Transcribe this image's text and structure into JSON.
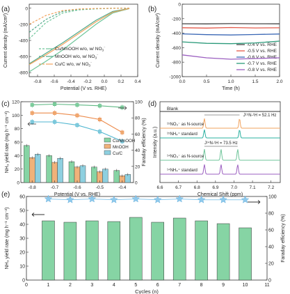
{
  "panels": [
    "(a)",
    "(b)",
    "(c)",
    "(d)",
    "(e)"
  ],
  "chart_data": [
    {
      "panel": "(a)",
      "type": "line",
      "xlabel": "Potential (V vs. RHE)",
      "ylabel": "Current density (mA/cm²)",
      "xlim": [
        -0.9,
        0.4
      ],
      "ylim": [
        -850,
        50
      ],
      "xticks": [
        "-0.8",
        "-0.6",
        "-0.4",
        "-0.2",
        "0.0",
        "0.2",
        "0.4"
      ],
      "yticks": [
        "0",
        "-200",
        "-400",
        "-600",
        "-800"
      ],
      "legend": "bottom-left",
      "legend_labels": [
        [
          "Cu/MnOOH",
          "w/o, w/ NO",
          "3",
          "⁻"
        ],
        [
          "MnOOH",
          "w/o, w/ NO",
          "3",
          "⁻"
        ],
        [
          "Cu/C",
          "w/o, w/ NO",
          "3",
          "⁻"
        ]
      ],
      "colors": {
        "Cu/MnOOH": "#6fc59a",
        "MnOOH": "#4fa889",
        "Cu/C": "#f2a35e"
      },
      "series": [
        {
          "label": "Cu/MnOOH w/o NO3-",
          "dash": "dashed",
          "x": [
            0.3,
            0.1,
            -0.1,
            -0.3,
            -0.5,
            -0.7,
            -0.9
          ],
          "y": [
            0,
            -2,
            -8,
            -20,
            -60,
            -180,
            -380
          ]
        },
        {
          "label": "Cu/MnOOH w/ NO3-",
          "dash": "solid",
          "x": [
            0.3,
            0.1,
            -0.1,
            -0.3,
            -0.5,
            -0.7,
            -0.9
          ],
          "y": [
            -5,
            -60,
            -200,
            -360,
            -520,
            -660,
            -790
          ]
        },
        {
          "label": "MnOOH w/o NO3-",
          "dash": "dashed",
          "x": [
            0.3,
            0.1,
            -0.1,
            -0.3,
            -0.5,
            -0.7,
            -0.9
          ],
          "y": [
            0,
            -1,
            -5,
            -12,
            -40,
            -140,
            -300
          ]
        },
        {
          "label": "MnOOH w/ NO3-",
          "dash": "solid",
          "x": [
            0.3,
            0.1,
            -0.1,
            -0.3,
            -0.5,
            -0.7,
            -0.9
          ],
          "y": [
            -3,
            -40,
            -150,
            -290,
            -430,
            -560,
            -690
          ]
        },
        {
          "label": "Cu/C w/o NO3-",
          "dash": "dashed",
          "x": [
            0.3,
            0.1,
            -0.1,
            -0.3,
            -0.5,
            -0.7,
            -0.9
          ],
          "y": [
            0,
            -1,
            -4,
            -10,
            -30,
            -90,
            -200
          ]
        },
        {
          "label": "Cu/C w/ NO3-",
          "dash": "solid",
          "x": [
            0.3,
            0.1,
            -0.1,
            -0.3,
            -0.5,
            -0.7,
            -0.9
          ],
          "y": [
            -4,
            -50,
            -170,
            -310,
            -450,
            -580,
            -700
          ]
        }
      ]
    },
    {
      "panel": "(b)",
      "type": "line",
      "xlabel": "Time (h)",
      "ylabel": "Current density (mA/cm²)",
      "xlim": [
        0,
        2.0
      ],
      "ylim": [
        -1000,
        0
      ],
      "xticks": [
        "0.0",
        "0.5",
        "1.0",
        "1.5",
        "2.0"
      ],
      "yticks": [
        "0",
        "-200",
        "-400",
        "-600",
        "-800",
        "-1000"
      ],
      "legend": "bottom-right",
      "series": [
        {
          "name": "-0.4 V vs. RHE",
          "color": "#444444",
          "x": [
            0,
            0.5,
            1.0,
            1.5,
            2.0
          ],
          "y": [
            -270,
            -272,
            -268,
            -270,
            -271
          ]
        },
        {
          "name": "-0.5 V vs. RHE",
          "color": "#e45a4a",
          "x": [
            0,
            0.5,
            1.0,
            1.5,
            2.0
          ],
          "y": [
            -325,
            -330,
            -322,
            -328,
            -326
          ]
        },
        {
          "name": "-0.6 V vs. RHE",
          "color": "#3a67b5",
          "x": [
            0,
            0.5,
            1.0,
            1.5,
            2.0
          ],
          "y": [
            -410,
            -420,
            -425,
            -418,
            -412
          ]
        },
        {
          "name": "-0.7 V vs. RHE",
          "color": "#2b9a7a",
          "x": [
            0,
            0.5,
            1.0,
            1.5,
            2.0
          ],
          "y": [
            -520,
            -540,
            -545,
            -535,
            -510
          ]
        },
        {
          "name": "-0.8 V vs. RHE",
          "color": "#9b5fc0",
          "x": [
            0,
            0.5,
            1.0,
            1.5,
            2.0
          ],
          "y": [
            -700,
            -740,
            -760,
            -750,
            -740
          ]
        }
      ]
    },
    {
      "panel": "(c)",
      "type": "bar",
      "categories": [
        "-0.8",
        "-0.7",
        "-0.6",
        "-0.5",
        "-0.4"
      ],
      "xlabel": "Potential (V vs. RHE)",
      "ylabel": "NH₃ yield rate (mg h⁻¹ cm⁻²)",
      "ylabel_right": "Faraday efficiency (%)",
      "ylim": [
        0,
        120
      ],
      "ylim_right": [
        0,
        100
      ],
      "yticks": [
        "0",
        "20",
        "40",
        "60",
        "80",
        "100",
        "120"
      ],
      "yticks_right": [
        "0",
        "20",
        "40",
        "60",
        "80",
        "100"
      ],
      "legend": "center-right",
      "series": [
        {
          "name": "Cu/MnOOH",
          "color": "#86d4a4",
          "values": [
            55,
            40,
            31,
            23,
            18
          ]
        },
        {
          "name": "MnOOH",
          "color": "#f0b27a",
          "values": [
            37,
            30,
            23,
            16,
            10
          ]
        },
        {
          "name": "Cu/C",
          "color": "#8ed0e0",
          "values": [
            42,
            36,
            25,
            20,
            12
          ]
        }
      ],
      "fe_series": [
        {
          "name": "Cu/MnOOH FE",
          "color": "#86d4a4",
          "values": [
            96,
            97,
            96,
            95,
            93
          ]
        },
        {
          "name": "MnOOH FE",
          "color": "#f0b27a",
          "values": [
            86,
            86,
            83,
            78,
            62
          ]
        },
        {
          "name": "Cu/C FE",
          "color": "#8ed0e0",
          "values": [
            75,
            75,
            71,
            63,
            51
          ]
        }
      ]
    },
    {
      "panel": "(d)",
      "type": "line",
      "xlabel": "Chemical Shift (ppm)",
      "ylabel": "Intensity (a.u.)",
      "xlim": [
        6.6,
        7.25
      ],
      "xticks": [
        "6.6",
        "6.7",
        "6.8",
        "6.9",
        "7.0",
        "7.1",
        "7.2"
      ],
      "annotations": {
        "blank": "Blank",
        "j_nh_15": "J¹⁵N-¹H = 52.1 Hz",
        "j_nh_14": "J¹⁴N-¹H = 73.5 Hz",
        "trace_labels": [
          "¹⁵NO₃⁻ as N-source",
          "¹⁵NH₄⁺ standard",
          "¹⁴NO₃⁻ as N-source",
          "¹⁴NH₄⁺ standard"
        ]
      },
      "traces": [
        {
          "name": "Blank",
          "color": "#333333",
          "peaks": []
        },
        {
          "name": "15NO3- as N-source",
          "color": "#f2a35e",
          "peaks": [
            6.84,
            7.03
          ]
        },
        {
          "name": "15NH4+ standard",
          "color": "#2ab0a0",
          "peaks": [
            6.84,
            7.03
          ]
        },
        {
          "name": "14NO3- as N-source",
          "color": "#6fc59a",
          "peaks": [
            6.84,
            6.93,
            7.02
          ]
        },
        {
          "name": "14NH4+ standard",
          "color": "#9b5fc0",
          "peaks": [
            6.84,
            6.93,
            7.02
          ]
        }
      ]
    },
    {
      "panel": "(e)",
      "type": "bar",
      "xlabel": "Cycles (n)",
      "ylabel": "NH₃ yield rate (mg h⁻¹ cm⁻²)",
      "ylabel_right": "Faraday efficiency (%)",
      "categories": [
        "1",
        "2",
        "3",
        "4",
        "5",
        "6",
        "7",
        "8",
        "9",
        "10"
      ],
      "xticks": [
        "0",
        "1",
        "2",
        "3",
        "4",
        "5",
        "6",
        "7",
        "8",
        "9",
        "10",
        "11"
      ],
      "ylim": [
        0,
        60
      ],
      "ylim_right": [
        0,
        100
      ],
      "yticks": [
        "0",
        "10",
        "20",
        "30",
        "40",
        "50",
        "60"
      ],
      "yticks_right": [
        "0",
        "20",
        "40",
        "60",
        "80",
        "100"
      ],
      "series": [
        {
          "name": "NH3 yield rate",
          "color": "#86d4a4",
          "values": [
            42.5,
            41.5,
            42.5,
            42.0,
            45.0,
            41.5,
            44.5,
            42.5,
            40.5,
            37.5
          ]
        }
      ],
      "fe_series": [
        {
          "name": "Faraday efficiency",
          "color": "#8ec9ec",
          "values": [
            97,
            96,
            97,
            96,
            97,
            96,
            97,
            96,
            96,
            96
          ]
        }
      ]
    }
  ]
}
